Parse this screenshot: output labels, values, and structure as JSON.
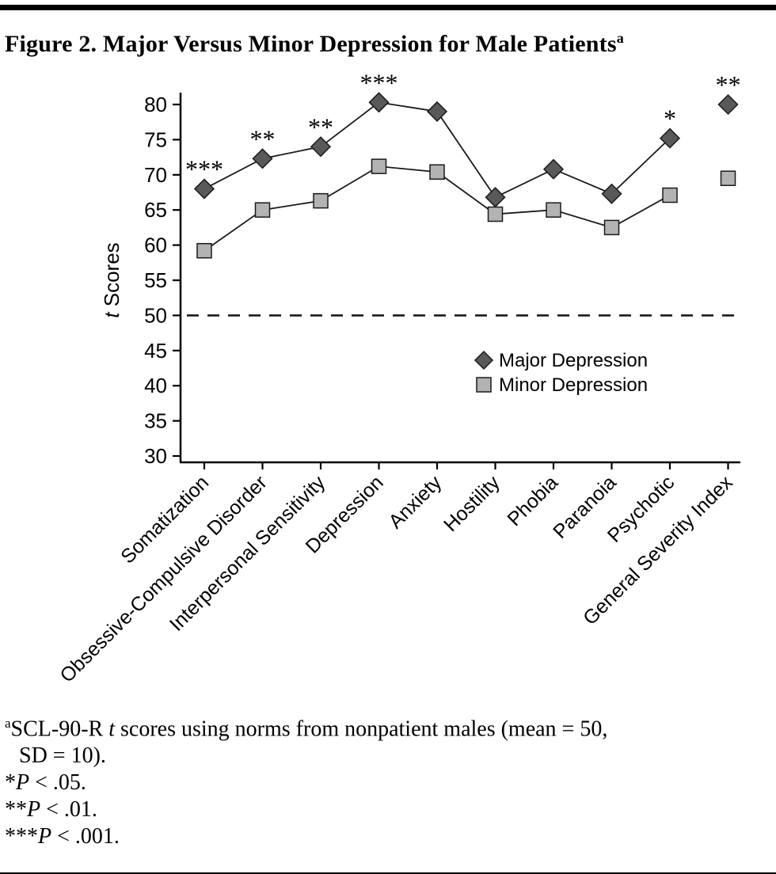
{
  "chart_data": {
    "type": "line",
    "title": "Figure 2. Major Versus Minor Depression for Male Patients",
    "title_superscript": "a",
    "categories": [
      "Somatization",
      "Obsessive-Compulsive Disorder",
      "Interpersonal Sensitivity",
      "Depression",
      "Anxiety",
      "Hostility",
      "Phobia",
      "Paranoia",
      "Psychotic",
      "General Severity Index"
    ],
    "series": [
      {
        "name": "Major Depression",
        "marker": "diamond",
        "marker_color": "#58595b",
        "values": [
          68,
          72.3,
          74,
          80.3,
          79,
          66.8,
          70.8,
          67.3,
          75.2,
          80
        ]
      },
      {
        "name": "Minor Depression",
        "marker": "square",
        "marker_color": "#b1b3b5",
        "values": [
          59.2,
          65,
          66.3,
          71.2,
          70.4,
          64.4,
          65,
          62.5,
          67.1,
          69.5
        ]
      }
    ],
    "significance_markers": [
      "***",
      "**",
      "**",
      "***",
      "",
      "",
      "",
      "",
      "*",
      "**"
    ],
    "connected_point_count": 9,
    "xlabel": "",
    "ylabel_italic": "t",
    "ylabel_rest": " Scores",
    "ylim": [
      30,
      80
    ],
    "yticks": [
      30,
      35,
      40,
      45,
      50,
      55,
      60,
      65,
      70,
      75,
      80
    ],
    "reference_line_y": 50,
    "reference_line_style": "dashed",
    "legend": [
      "Major Depression",
      "Minor Depression"
    ],
    "legend_position": "inside-right",
    "line_color": "#1a1a1a",
    "xtick_rotation": -45
  },
  "footnotes": {
    "a_sup": "a",
    "a_before_italic": "SCL-90-R ",
    "a_italic": "t",
    "a_after_italic": " scores using norms from nonpatient males (mean = 50,",
    "a_line2": "SD = 10).",
    "sig": [
      {
        "stars": "*",
        "p": "P",
        "rest": " < .05."
      },
      {
        "stars": "**",
        "p": "P",
        "rest": " < .01."
      },
      {
        "stars": "***",
        "p": "P",
        "rest": " < .001."
      }
    ]
  }
}
